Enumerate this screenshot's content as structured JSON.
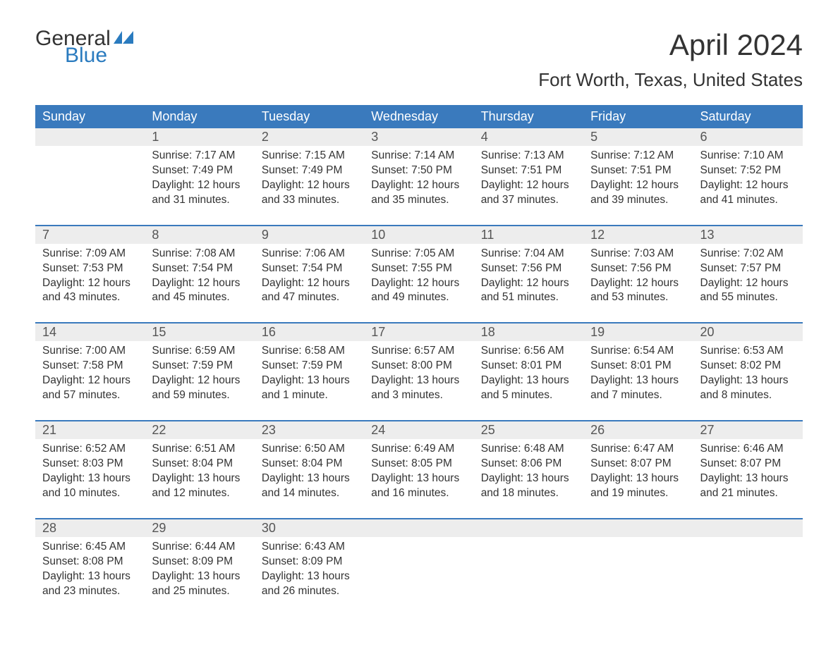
{
  "logo": {
    "text1": "General",
    "text2": "Blue",
    "flag_color": "#2a7bbf"
  },
  "title": "April 2024",
  "location": "Fort Worth, Texas, United States",
  "colors": {
    "header_bg": "#3a7abd",
    "header_text": "#ffffff",
    "daynum_bg": "#ededed",
    "rule": "#3a7abd",
    "body_text": "#333333",
    "logo_accent": "#2a7bbf"
  },
  "weekdays": [
    "Sunday",
    "Monday",
    "Tuesday",
    "Wednesday",
    "Thursday",
    "Friday",
    "Saturday"
  ],
  "weeks": [
    [
      null,
      {
        "n": "1",
        "sr": "Sunrise: 7:17 AM",
        "ss": "Sunset: 7:49 PM",
        "d1": "Daylight: 12 hours",
        "d2": "and 31 minutes."
      },
      {
        "n": "2",
        "sr": "Sunrise: 7:15 AM",
        "ss": "Sunset: 7:49 PM",
        "d1": "Daylight: 12 hours",
        "d2": "and 33 minutes."
      },
      {
        "n": "3",
        "sr": "Sunrise: 7:14 AM",
        "ss": "Sunset: 7:50 PM",
        "d1": "Daylight: 12 hours",
        "d2": "and 35 minutes."
      },
      {
        "n": "4",
        "sr": "Sunrise: 7:13 AM",
        "ss": "Sunset: 7:51 PM",
        "d1": "Daylight: 12 hours",
        "d2": "and 37 minutes."
      },
      {
        "n": "5",
        "sr": "Sunrise: 7:12 AM",
        "ss": "Sunset: 7:51 PM",
        "d1": "Daylight: 12 hours",
        "d2": "and 39 minutes."
      },
      {
        "n": "6",
        "sr": "Sunrise: 7:10 AM",
        "ss": "Sunset: 7:52 PM",
        "d1": "Daylight: 12 hours",
        "d2": "and 41 minutes."
      }
    ],
    [
      {
        "n": "7",
        "sr": "Sunrise: 7:09 AM",
        "ss": "Sunset: 7:53 PM",
        "d1": "Daylight: 12 hours",
        "d2": "and 43 minutes."
      },
      {
        "n": "8",
        "sr": "Sunrise: 7:08 AM",
        "ss": "Sunset: 7:54 PM",
        "d1": "Daylight: 12 hours",
        "d2": "and 45 minutes."
      },
      {
        "n": "9",
        "sr": "Sunrise: 7:06 AM",
        "ss": "Sunset: 7:54 PM",
        "d1": "Daylight: 12 hours",
        "d2": "and 47 minutes."
      },
      {
        "n": "10",
        "sr": "Sunrise: 7:05 AM",
        "ss": "Sunset: 7:55 PM",
        "d1": "Daylight: 12 hours",
        "d2": "and 49 minutes."
      },
      {
        "n": "11",
        "sr": "Sunrise: 7:04 AM",
        "ss": "Sunset: 7:56 PM",
        "d1": "Daylight: 12 hours",
        "d2": "and 51 minutes."
      },
      {
        "n": "12",
        "sr": "Sunrise: 7:03 AM",
        "ss": "Sunset: 7:56 PM",
        "d1": "Daylight: 12 hours",
        "d2": "and 53 minutes."
      },
      {
        "n": "13",
        "sr": "Sunrise: 7:02 AM",
        "ss": "Sunset: 7:57 PM",
        "d1": "Daylight: 12 hours",
        "d2": "and 55 minutes."
      }
    ],
    [
      {
        "n": "14",
        "sr": "Sunrise: 7:00 AM",
        "ss": "Sunset: 7:58 PM",
        "d1": "Daylight: 12 hours",
        "d2": "and 57 minutes."
      },
      {
        "n": "15",
        "sr": "Sunrise: 6:59 AM",
        "ss": "Sunset: 7:59 PM",
        "d1": "Daylight: 12 hours",
        "d2": "and 59 minutes."
      },
      {
        "n": "16",
        "sr": "Sunrise: 6:58 AM",
        "ss": "Sunset: 7:59 PM",
        "d1": "Daylight: 13 hours",
        "d2": "and 1 minute."
      },
      {
        "n": "17",
        "sr": "Sunrise: 6:57 AM",
        "ss": "Sunset: 8:00 PM",
        "d1": "Daylight: 13 hours",
        "d2": "and 3 minutes."
      },
      {
        "n": "18",
        "sr": "Sunrise: 6:56 AM",
        "ss": "Sunset: 8:01 PM",
        "d1": "Daylight: 13 hours",
        "d2": "and 5 minutes."
      },
      {
        "n": "19",
        "sr": "Sunrise: 6:54 AM",
        "ss": "Sunset: 8:01 PM",
        "d1": "Daylight: 13 hours",
        "d2": "and 7 minutes."
      },
      {
        "n": "20",
        "sr": "Sunrise: 6:53 AM",
        "ss": "Sunset: 8:02 PM",
        "d1": "Daylight: 13 hours",
        "d2": "and 8 minutes."
      }
    ],
    [
      {
        "n": "21",
        "sr": "Sunrise: 6:52 AM",
        "ss": "Sunset: 8:03 PM",
        "d1": "Daylight: 13 hours",
        "d2": "and 10 minutes."
      },
      {
        "n": "22",
        "sr": "Sunrise: 6:51 AM",
        "ss": "Sunset: 8:04 PM",
        "d1": "Daylight: 13 hours",
        "d2": "and 12 minutes."
      },
      {
        "n": "23",
        "sr": "Sunrise: 6:50 AM",
        "ss": "Sunset: 8:04 PM",
        "d1": "Daylight: 13 hours",
        "d2": "and 14 minutes."
      },
      {
        "n": "24",
        "sr": "Sunrise: 6:49 AM",
        "ss": "Sunset: 8:05 PM",
        "d1": "Daylight: 13 hours",
        "d2": "and 16 minutes."
      },
      {
        "n": "25",
        "sr": "Sunrise: 6:48 AM",
        "ss": "Sunset: 8:06 PM",
        "d1": "Daylight: 13 hours",
        "d2": "and 18 minutes."
      },
      {
        "n": "26",
        "sr": "Sunrise: 6:47 AM",
        "ss": "Sunset: 8:07 PM",
        "d1": "Daylight: 13 hours",
        "d2": "and 19 minutes."
      },
      {
        "n": "27",
        "sr": "Sunrise: 6:46 AM",
        "ss": "Sunset: 8:07 PM",
        "d1": "Daylight: 13 hours",
        "d2": "and 21 minutes."
      }
    ],
    [
      {
        "n": "28",
        "sr": "Sunrise: 6:45 AM",
        "ss": "Sunset: 8:08 PM",
        "d1": "Daylight: 13 hours",
        "d2": "and 23 minutes."
      },
      {
        "n": "29",
        "sr": "Sunrise: 6:44 AM",
        "ss": "Sunset: 8:09 PM",
        "d1": "Daylight: 13 hours",
        "d2": "and 25 minutes."
      },
      {
        "n": "30",
        "sr": "Sunrise: 6:43 AM",
        "ss": "Sunset: 8:09 PM",
        "d1": "Daylight: 13 hours",
        "d2": "and 26 minutes."
      },
      null,
      null,
      null,
      null
    ]
  ]
}
